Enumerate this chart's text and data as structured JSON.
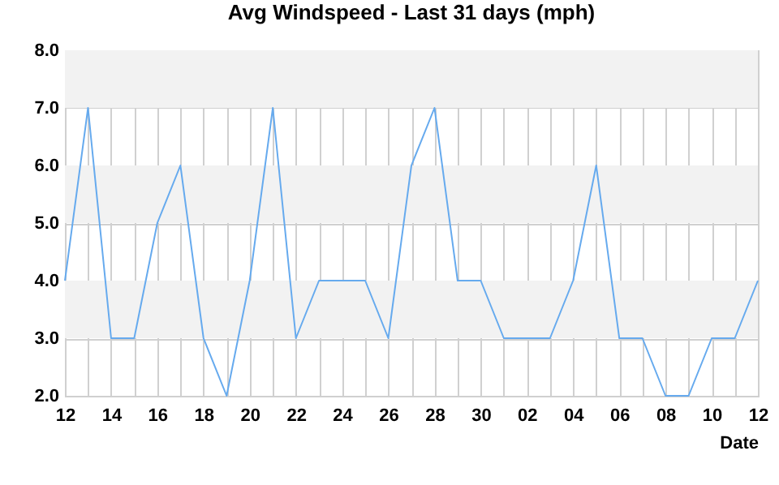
{
  "chart_data": {
    "type": "line",
    "title": "Avg Windspeed - Last 31 days (mph)",
    "xlabel": "Date",
    "categories": [
      "12",
      null,
      "14",
      null,
      "16",
      null,
      "18",
      null,
      "20",
      null,
      "22",
      null,
      "24",
      null,
      "26",
      null,
      "28",
      null,
      "30",
      null,
      "02",
      null,
      "04",
      null,
      "06",
      null,
      "08",
      null,
      "10",
      null,
      "12"
    ],
    "series": [
      {
        "color": "#66aaee",
        "values": [
          4,
          7,
          3,
          3,
          5,
          6,
          3,
          2,
          4,
          7,
          3,
          4,
          4,
          4,
          3,
          6,
          7,
          4,
          4,
          3,
          3,
          3,
          4,
          6,
          3,
          3,
          2,
          2,
          3,
          3,
          4
        ]
      }
    ],
    "ylim": [
      2,
      8
    ],
    "yticks": [
      {
        "value": 2,
        "label": "2.0"
      },
      {
        "value": 3,
        "label": "3.0"
      },
      {
        "value": 4,
        "label": "4.0"
      },
      {
        "value": 5,
        "label": "5.0"
      },
      {
        "value": 6,
        "label": "6.0"
      },
      {
        "value": 7,
        "label": "7.0"
      },
      {
        "value": 8,
        "label": "8.0"
      }
    ],
    "grid": true,
    "marker": "none",
    "line_style": "solid"
  }
}
